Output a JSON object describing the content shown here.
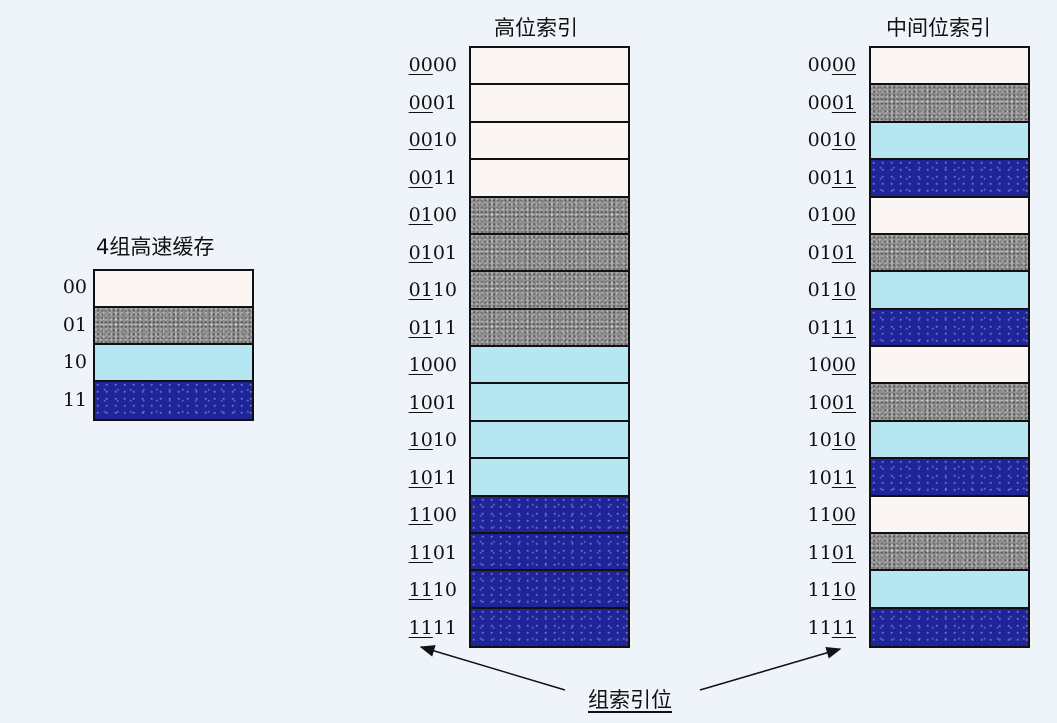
{
  "small_cache": {
    "title": "4组高速缓存",
    "rows": [
      {
        "label": "00",
        "color": "white"
      },
      {
        "label": "01",
        "color": "gray"
      },
      {
        "label": "10",
        "color": "cyan"
      },
      {
        "label": "11",
        "color": "blue"
      }
    ]
  },
  "high_index": {
    "title": "高位索引",
    "rows": [
      {
        "pre": "",
        "u": "00",
        "post": "00",
        "color": "white"
      },
      {
        "pre": "",
        "u": "00",
        "post": "01",
        "color": "white"
      },
      {
        "pre": "",
        "u": "00",
        "post": "10",
        "color": "white"
      },
      {
        "pre": "",
        "u": "00",
        "post": "11",
        "color": "white"
      },
      {
        "pre": "",
        "u": "01",
        "post": "00",
        "color": "gray"
      },
      {
        "pre": "",
        "u": "01",
        "post": "01",
        "color": "gray"
      },
      {
        "pre": "",
        "u": "01",
        "post": "10",
        "color": "gray"
      },
      {
        "pre": "",
        "u": "01",
        "post": "11",
        "color": "gray"
      },
      {
        "pre": "",
        "u": "10",
        "post": "00",
        "color": "cyan"
      },
      {
        "pre": "",
        "u": "10",
        "post": "01",
        "color": "cyan"
      },
      {
        "pre": "",
        "u": "10",
        "post": "10",
        "color": "cyan"
      },
      {
        "pre": "",
        "u": "10",
        "post": "11",
        "color": "cyan"
      },
      {
        "pre": "",
        "u": "11",
        "post": "00",
        "color": "blue"
      },
      {
        "pre": "",
        "u": "11",
        "post": "01",
        "color": "blue"
      },
      {
        "pre": "",
        "u": "11",
        "post": "10",
        "color": "blue"
      },
      {
        "pre": "",
        "u": "11",
        "post": "11",
        "color": "blue"
      }
    ]
  },
  "middle_index": {
    "title": "中间位索引",
    "rows": [
      {
        "pre": "00",
        "u": "00",
        "post": "",
        "color": "white"
      },
      {
        "pre": "00",
        "u": "01",
        "post": "",
        "color": "gray"
      },
      {
        "pre": "00",
        "u": "10",
        "post": "",
        "color": "cyan"
      },
      {
        "pre": "00",
        "u": "11",
        "post": "",
        "color": "blue"
      },
      {
        "pre": "01",
        "u": "00",
        "post": "",
        "color": "white"
      },
      {
        "pre": "01",
        "u": "01",
        "post": "",
        "color": "gray"
      },
      {
        "pre": "01",
        "u": "10",
        "post": "",
        "color": "cyan"
      },
      {
        "pre": "01",
        "u": "11",
        "post": "",
        "color": "blue"
      },
      {
        "pre": "10",
        "u": "00",
        "post": "",
        "color": "white"
      },
      {
        "pre": "10",
        "u": "01",
        "post": "",
        "color": "gray"
      },
      {
        "pre": "10",
        "u": "10",
        "post": "",
        "color": "cyan"
      },
      {
        "pre": "10",
        "u": "11",
        "post": "",
        "color": "blue"
      },
      {
        "pre": "11",
        "u": "00",
        "post": "",
        "color": "white"
      },
      {
        "pre": "11",
        "u": "01",
        "post": "",
        "color": "gray"
      },
      {
        "pre": "11",
        "u": "10",
        "post": "",
        "color": "cyan"
      },
      {
        "pre": "11",
        "u": "11",
        "post": "",
        "color": "blue"
      }
    ]
  },
  "bottom_label": "组索引位",
  "colors": {
    "white": "#fbf6f4",
    "gray": "#8f8f8f",
    "cyan": "#b6e6f2",
    "blue": "#1f2499",
    "background": "#eef4fa"
  }
}
